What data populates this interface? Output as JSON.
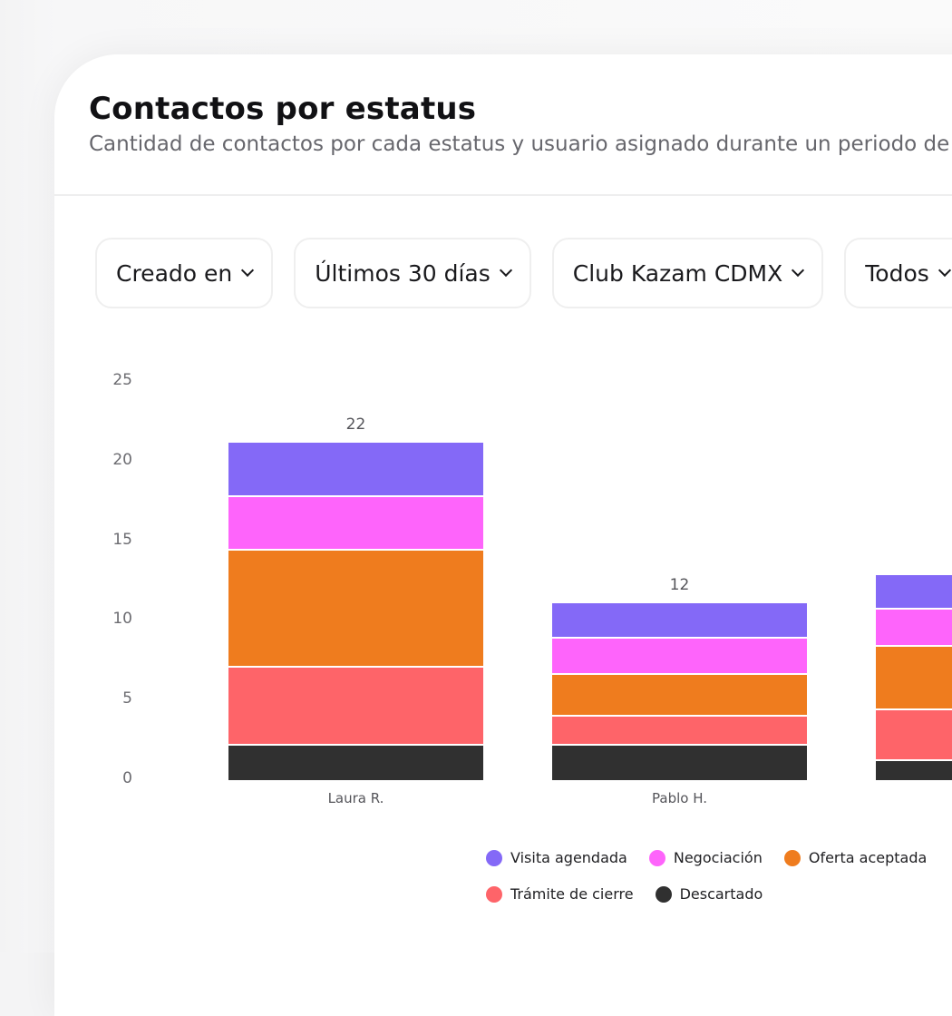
{
  "header": {
    "title": "Contactos por estatus",
    "subtitle": "Cantidad de contactos por cada estatus y usuario asignado durante un periodo de"
  },
  "filters": [
    {
      "label": "Creado en"
    },
    {
      "label": "Últimos 30 días"
    },
    {
      "label": "Club Kazam CDMX"
    },
    {
      "label": "Todos"
    }
  ],
  "colors": {
    "visita_agendada": "#8469f7",
    "negociacion": "#fe64fb",
    "oferta_aceptada": "#ef7c1e",
    "tramite_de_cierre": "#fe6469",
    "descartado": "#303030"
  },
  "chart_data": {
    "type": "bar",
    "stacked": true,
    "title": "Contactos por estatus",
    "subtitle": "Cantidad de contactos por cada estatus y usuario asignado durante un periodo de",
    "xlabel": "",
    "ylabel": "",
    "ylim": [
      0,
      25
    ],
    "yticks": [
      0,
      5,
      10,
      15,
      20,
      25
    ],
    "grid": true,
    "legend_position": "bottom",
    "categories": [
      "Laura R.",
      "Pablo H.",
      ""
    ],
    "totals": [
      "22",
      "12",
      ""
    ],
    "series": [
      {
        "name": "Descartado",
        "color": "#303030",
        "values": [
          2.3,
          2.3,
          1.3
        ]
      },
      {
        "name": "Trámite de cierre",
        "color": "#fe6469",
        "values": [
          4.9,
          1.8,
          3.2
        ]
      },
      {
        "name": "Oferta aceptada",
        "color": "#ef7c1e",
        "values": [
          7.3,
          2.6,
          4.0
        ]
      },
      {
        "name": "Negociación",
        "color": "#fe64fb",
        "values": [
          3.4,
          2.3,
          2.3
        ]
      },
      {
        "name": "Visita agendada",
        "color": "#8469f7",
        "values": [
          3.4,
          2.2,
          2.2
        ]
      }
    ]
  },
  "legend": [
    {
      "label": "Visita agendada",
      "color": "#8469f7"
    },
    {
      "label": "Negociación",
      "color": "#fe64fb"
    },
    {
      "label": "Oferta aceptada",
      "color": "#ef7c1e"
    },
    {
      "label": "Trámite de cierre",
      "color": "#fe6469"
    },
    {
      "label": "Descartado",
      "color": "#303030"
    }
  ]
}
